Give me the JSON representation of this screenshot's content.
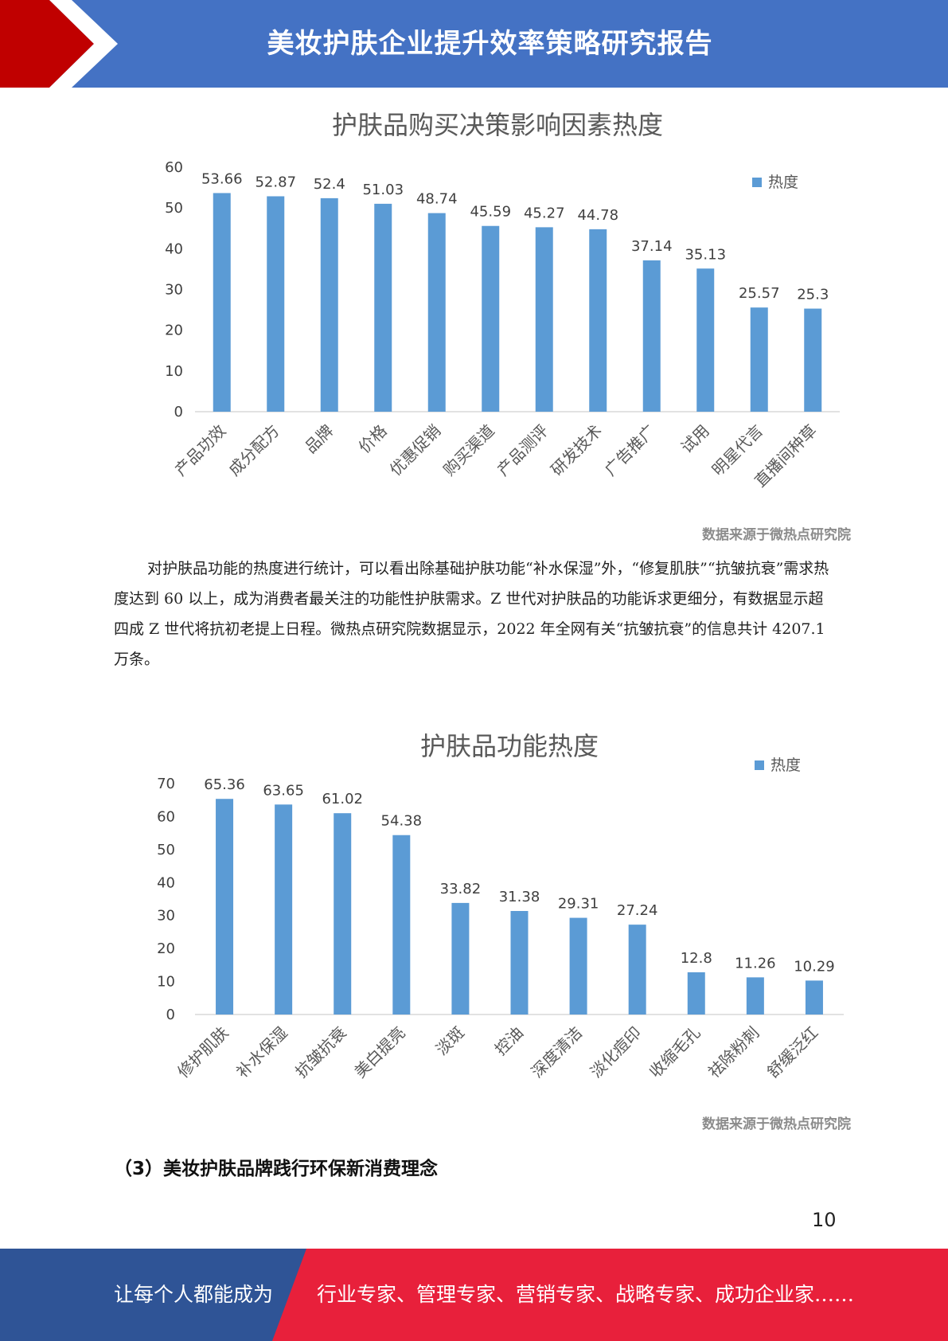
{
  "header": {
    "title": "美妆护肤企业提升效率策略研究报告"
  },
  "colors": {
    "header_blue": "#4472c4",
    "accent_red": "#c00000",
    "bar_blue": "#5b9bd5",
    "footer_blue": "#2f5496",
    "footer_red": "#e8203b"
  },
  "chart_data": [
    {
      "type": "bar",
      "title": "护肤品购买决策影响因素热度",
      "categories": [
        "产品功效",
        "成分配方",
        "品牌",
        "价格",
        "优惠促销",
        "购买渠道",
        "产品测评",
        "研发技术",
        "广告推广",
        "试用",
        "明星代言",
        "直播间种草"
      ],
      "series": [
        {
          "name": "热度",
          "values": [
            53.66,
            52.87,
            52.4,
            51.03,
            48.74,
            45.59,
            45.27,
            44.78,
            37.14,
            35.13,
            25.57,
            25.3
          ]
        }
      ],
      "value_labels": [
        "53.66",
        "52.87",
        "52.4",
        "51.03",
        "48.74",
        "45.59",
        "45.27",
        "44.78",
        "37.14",
        "35.13",
        "25.57",
        "25.3"
      ],
      "ylim": [
        0,
        60
      ],
      "yticks": [
        "0",
        "10",
        "20",
        "30",
        "40",
        "50",
        "60"
      ],
      "legend_position": "top-right",
      "grid": false,
      "source": "数据来源于微热点研究院"
    },
    {
      "type": "bar",
      "title": "护肤品功能热度",
      "categories": [
        "修护肌肤",
        "补水保湿",
        "抗皱抗衰",
        "美白提亮",
        "淡斑",
        "控油",
        "深度清洁",
        "淡化痘印",
        "收缩毛孔",
        "祛除粉刺",
        "舒缓泛红"
      ],
      "series": [
        {
          "name": "热度",
          "values": [
            65.36,
            63.65,
            61.02,
            54.38,
            33.82,
            31.38,
            29.31,
            27.24,
            12.8,
            11.26,
            10.29
          ]
        }
      ],
      "value_labels": [
        "65.36",
        "63.65",
        "61.02",
        "54.38",
        "33.82",
        "31.38",
        "29.31",
        "27.24",
        "12.8",
        "11.26",
        "10.29"
      ],
      "ylim": [
        0,
        70
      ],
      "yticks": [
        "0",
        "10",
        "20",
        "30",
        "40",
        "50",
        "60",
        "70"
      ],
      "legend_position": "top-right",
      "grid": false,
      "source": "数据来源于微热点研究院"
    }
  ],
  "body": {
    "paragraph": "对护肤品功能的热度进行统计，可以看出除基础护肤功能“补水保湿”外，“修复肌肤”“抗皱抗衰”需求热度达到 60 以上，成为消费者最关注的功能性护肤需求。Z 世代对护肤品的功能诉求更细分，有数据显示超四成 Z 世代将抗初老提上日程。微热点研究院数据显示，2022 年全网有关“抗皱抗衰”的信息共计 4207.1 万条。",
    "section_heading": "（3）美妆护肤品牌践行环保新消费理念",
    "page_number": "10"
  },
  "footer": {
    "left_text": "让每个人都能成为",
    "right_text": "行业专家、管理专家、营销专家、战略专家、成功企业家……"
  }
}
